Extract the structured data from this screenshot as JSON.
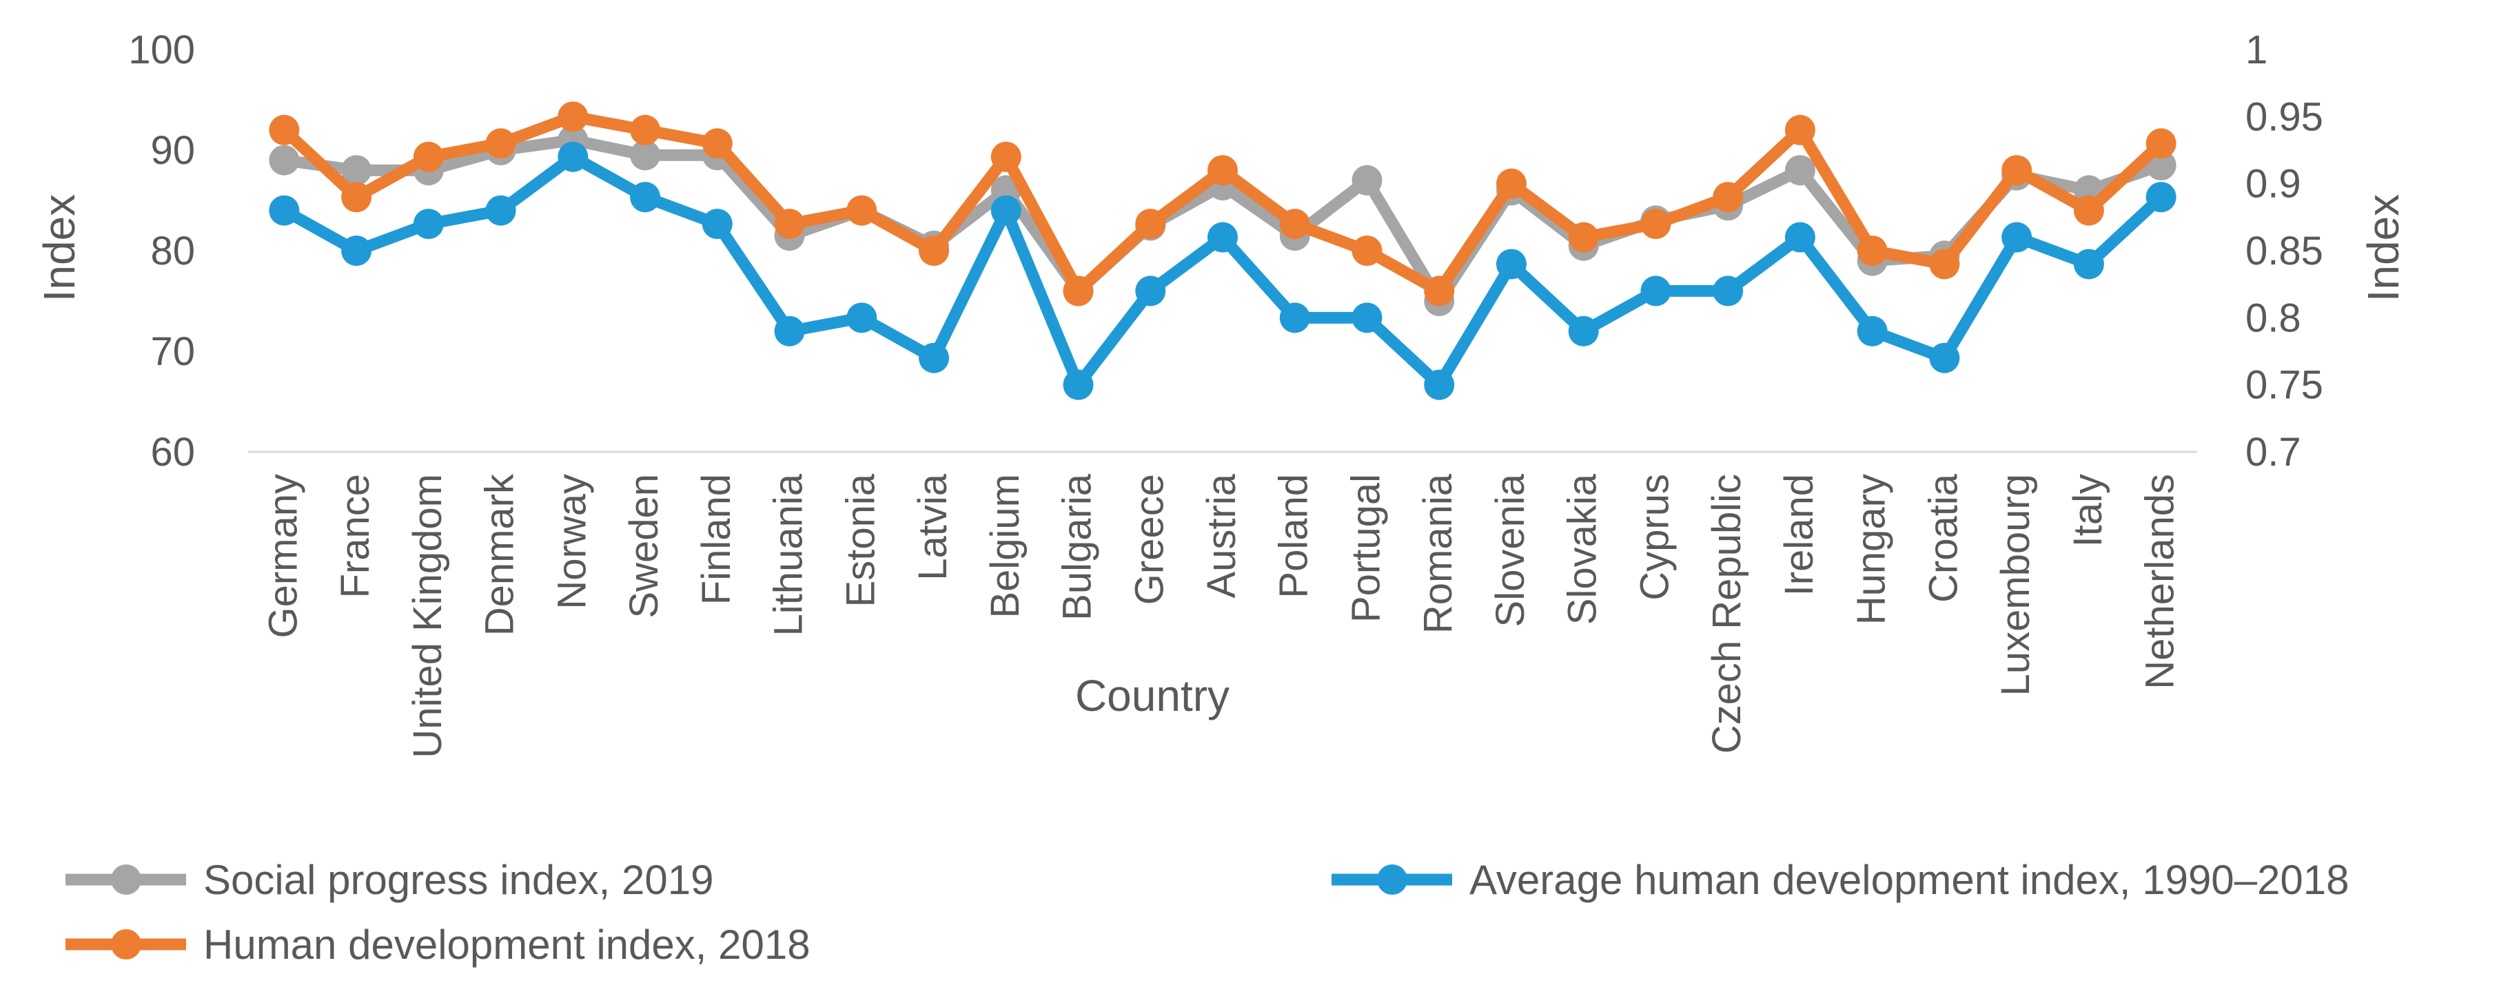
{
  "chart_data": {
    "type": "line",
    "title": "",
    "xlabel": "Country",
    "ylabel_left": "Index",
    "ylabel_right": "Index",
    "ylim_left": [
      60,
      100
    ],
    "yticks_left": [
      "60",
      "70",
      "80",
      "90",
      "100"
    ],
    "ylim_right": [
      0.7,
      1.0
    ],
    "yticks_right": [
      "0.7",
      "0.75",
      "0.8",
      "0.85",
      "0.9",
      "0.95",
      "1"
    ],
    "grid": false,
    "legend_position": "bottom",
    "categories": [
      "Germany",
      "France",
      "United Kingdom",
      "Denmark",
      "Norway",
      "Sweden",
      "Finland",
      "Lithuania",
      "Estonia",
      "Latvia",
      "Belgium",
      "Bulgaria",
      "Greece",
      "Austria",
      "Poland",
      "Portugal",
      "Romania",
      "Slovenia",
      "Slovakia",
      "Cyprus",
      "Czech Republic",
      "Ireland",
      "Hungary",
      "Croatia",
      "Luxembourg",
      "Italy",
      "Netherlands"
    ],
    "series": [
      {
        "name": "Social progress index, 2019",
        "axis": "left",
        "color": "#a5a5a5",
        "values": [
          89,
          88,
          88,
          90,
          91,
          89.5,
          89.5,
          81.5,
          84,
          80.5,
          86,
          76,
          82.5,
          86.5,
          81.5,
          87,
          75,
          86,
          80.5,
          83,
          84.5,
          88,
          79,
          79.5,
          87.5,
          86,
          88.5
        ]
      },
      {
        "name": "Human development index, 2018",
        "axis": "right",
        "color": "#ed7d31",
        "values": [
          0.94,
          0.89,
          0.92,
          0.93,
          0.95,
          0.94,
          0.93,
          0.87,
          0.88,
          0.85,
          0.92,
          0.82,
          0.87,
          0.91,
          0.87,
          0.85,
          0.82,
          0.9,
          0.86,
          0.87,
          0.89,
          0.94,
          0.85,
          0.84,
          0.91,
          0.88,
          0.93
        ]
      },
      {
        "name": "Average human development index, 1990–2018",
        "axis": "right",
        "color": "#1f9ad6",
        "values": [
          0.88,
          0.85,
          0.87,
          0.88,
          0.92,
          0.89,
          0.87,
          0.79,
          0.8,
          0.77,
          0.88,
          0.75,
          0.82,
          0.86,
          0.8,
          0.8,
          0.75,
          0.84,
          0.79,
          0.82,
          0.82,
          0.86,
          0.79,
          0.77,
          0.86,
          0.84,
          0.89
        ]
      }
    ],
    "legend": [
      {
        "label": "Social progress index, 2019",
        "color": "#a5a5a5"
      },
      {
        "label": "Average human development index, 1990–2018",
        "color": "#1f9ad6"
      },
      {
        "label": "Human development index, 2018",
        "color": "#ed7d31"
      }
    ]
  }
}
